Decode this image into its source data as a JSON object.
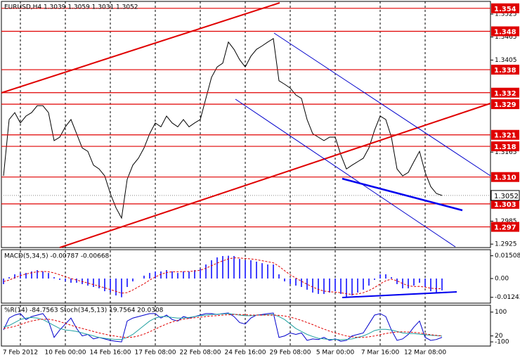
{
  "chart_data": [
    {
      "type": "line",
      "title": "EURUSD,H4  1.3039 1.3059 1.3031 1.3052",
      "categories": [
        null,
        null,
        null,
        "7 Feb 2012",
        null,
        null,
        null,
        null,
        null,
        null,
        null,
        "10 Feb 00:00",
        null,
        null,
        null,
        null,
        null,
        null,
        null,
        "14 Feb 16:00",
        null,
        null,
        null,
        null,
        null,
        null,
        null,
        "17 Feb 08:00",
        null,
        null,
        null,
        null,
        null,
        null,
        null,
        "22 Feb 08:00",
        null,
        null,
        null,
        null,
        null,
        null,
        null,
        "24 Feb 16:00",
        null,
        null,
        null,
        null,
        null,
        null,
        null,
        "29 Feb 08:00",
        null,
        null,
        null,
        null,
        null,
        null,
        null,
        "5 Mar 00:00",
        null,
        null,
        null,
        null,
        null,
        null,
        null,
        "7 Mar 16:00",
        null,
        null,
        null,
        null,
        null,
        null,
        null,
        "12 Mar 08:00",
        null,
        null,
        null
      ],
      "series": [
        {
          "color": "#000000",
          "values": [
            1.3103,
            1.325,
            1.3268,
            1.3241,
            1.3259,
            1.3268,
            1.3286,
            1.3286,
            1.3268,
            1.3195,
            1.3204,
            1.3231,
            1.325,
            1.3213,
            1.3176,
            1.3167,
            1.3131,
            1.3121,
            1.3103,
            1.3057,
            1.302,
            1.2993,
            1.3094,
            1.3131,
            1.3149,
            1.3176,
            1.3213,
            1.3241,
            1.3231,
            1.3259,
            1.3241,
            1.3231,
            1.325,
            1.3231,
            1.3241,
            1.325,
            1.3305,
            1.336,
            1.3387,
            1.3397,
            1.3452,
            1.3433,
            1.3406,
            1.3387,
            1.3415,
            1.3433,
            1.3442,
            1.3452,
            1.3461,
            1.3351,
            1.3342,
            1.3332,
            1.3314,
            1.3305,
            1.325,
            1.3213,
            1.3204,
            1.3195,
            1.3204,
            1.3204,
            1.3158,
            1.3121,
            1.3131,
            1.314,
            1.3149,
            1.3176,
            1.3222,
            1.3259,
            1.325,
            1.3204,
            1.3121,
            1.3103,
            1.3112,
            1.314,
            1.3167,
            1.3112,
            1.3075,
            1.3057,
            1.3052
          ]
        }
      ],
      "ylim": [
        1.2916,
        1.3558
      ],
      "yticks": [
        1.3525,
        1.3465,
        1.3405,
        1.3165,
        1.2985,
        1.2925
      ],
      "levels": [
        1.354,
        1.348,
        1.338,
        1.332,
        1.329,
        1.321,
        1.318,
        {
          "value": 1.31,
          "label": "1.310"
        },
        1.303,
        1.297
      ],
      "level_color": "#e00000",
      "last_price": 1.3052
    },
    {
      "type": "bar",
      "title": "MACD(5,34,5) -0.00787 -0.00668",
      "series": [
        {
          "color": "#0000ff",
          "values": [
            -0.0037,
            0.0009,
            0.0028,
            0.0037,
            0.0037,
            0.0047,
            0.0056,
            0.0047,
            0.0037,
            0.0009,
            -0.0009,
            -0.0019,
            -0.0028,
            -0.0028,
            -0.0037,
            -0.0047,
            -0.0056,
            -0.0065,
            -0.0084,
            -0.0093,
            -0.0112,
            -0.0124,
            -0.0056,
            -0.0019,
            0,
            0.0019,
            0.0037,
            0.0047,
            0.0047,
            0.0056,
            0.0047,
            0.0037,
            0.0047,
            0.0047,
            0.0056,
            0.0065,
            0.0093,
            0.0121,
            0.014,
            0.0149,
            0.0151,
            0.0149,
            0.013,
            0.0121,
            0.0121,
            0.0112,
            0.0102,
            0.0093,
            0.0093,
            0.0028,
            -0.0019,
            -0.0037,
            -0.0047,
            -0.0056,
            -0.0074,
            -0.0093,
            -0.0102,
            -0.0102,
            -0.0093,
            -0.0084,
            -0.0102,
            -0.0124,
            -0.0112,
            -0.0093,
            -0.0074,
            -0.0047,
            -0.0009,
            0.0028,
            0.0028,
            0.0009,
            -0.0037,
            -0.0065,
            -0.0065,
            -0.0047,
            -0.0028,
            -0.0056,
            -0.0084,
            -0.0093,
            -0.00787
          ]
        },
        {
          "color": "#e00000",
          "type": "line",
          "dashed": true,
          "values": [
            -0.002,
            -0.001,
            0.0005,
            0.002,
            0.003,
            0.0038,
            0.0045,
            0.0047,
            0.0045,
            0.0037,
            0.0025,
            0.0012,
            0,
            -0.001,
            -0.002,
            -0.003,
            -0.004,
            -0.005,
            -0.0062,
            -0.0073,
            -0.0085,
            -0.0097,
            -0.0093,
            -0.0076,
            -0.0055,
            -0.0035,
            -0.001,
            0.001,
            0.0028,
            0.004,
            0.0045,
            0.0045,
            0.0046,
            0.0047,
            0.005,
            0.0055,
            0.0068,
            0.0085,
            0.0102,
            0.0117,
            0.013,
            0.0137,
            0.0136,
            0.0133,
            0.013,
            0.0125,
            0.0118,
            0.0111,
            0.0104,
            0.0081,
            0.0052,
            0.0025,
            0.0003,
            -0.0018,
            -0.0038,
            -0.0056,
            -0.0072,
            -0.0083,
            -0.0088,
            -0.009,
            -0.0094,
            -0.0101,
            -0.0105,
            -0.0102,
            -0.0094,
            -0.008,
            -0.006,
            -0.0035,
            -0.0015,
            -0.0004,
            -0.0015,
            -0.0033,
            -0.0048,
            -0.0053,
            -0.0052,
            -0.0057,
            -0.0064,
            -0.0068,
            -0.00668
          ]
        }
      ],
      "ylim": [
        -0.0163,
        0.0191
      ],
      "yticks": [
        0.01508,
        {
          "value": 0,
          "label": "0.00"
        },
        -0.01243
      ]
    },
    {
      "type": "line",
      "title": "%R(14) -84.7563  Stoch(34,5,13) 19.7564 20.0308",
      "series": [
        {
          "color": "#0000cc",
          "values": [
            -60,
            -20,
            -10,
            -5,
            -25,
            -15,
            -10,
            -5,
            -30,
            -85,
            -60,
            -40,
            -20,
            -55,
            -80,
            -75,
            -90,
            -85,
            -90,
            -95,
            -98,
            -100,
            -30,
            -20,
            -15,
            -10,
            -5,
            -5,
            -20,
            -10,
            -25,
            -30,
            -15,
            -20,
            -15,
            -10,
            -5,
            -5,
            -8,
            -5,
            -3,
            -15,
            -35,
            -40,
            -20,
            -10,
            -8,
            -5,
            -3,
            -85,
            -80,
            -70,
            -75,
            -70,
            -95,
            -90,
            -92,
            -85,
            -95,
            -90,
            -98,
            -95,
            -80,
            -75,
            -70,
            -40,
            -10,
            -5,
            -15,
            -60,
            -95,
            -90,
            -75,
            -50,
            -30,
            -85,
            -95,
            -92,
            -84.7563
          ]
        },
        {
          "color": "#20a0a0",
          "axis": "y2",
          "values": [
            50,
            55,
            65,
            75,
            80,
            82,
            80,
            75,
            65,
            55,
            45,
            40,
            38,
            35,
            30,
            25,
            20,
            15,
            12,
            10,
            8,
            8,
            15,
            25,
            40,
            55,
            70,
            80,
            85,
            85,
            82,
            80,
            80,
            82,
            85,
            88,
            90,
            92,
            93,
            94,
            95,
            93,
            90,
            88,
            88,
            90,
            90,
            91,
            92,
            85,
            75,
            60,
            45,
            35,
            25,
            18,
            12,
            10,
            8,
            8,
            7,
            8,
            10,
            15,
            20,
            28,
            38,
            42,
            42,
            40,
            35,
            30,
            28,
            28,
            26,
            24,
            22,
            21,
            19.7564
          ]
        },
        {
          "color": "#e00000",
          "axis": "y2",
          "dashed": true,
          "values": [
            45,
            48,
            52,
            58,
            65,
            70,
            74,
            76,
            76,
            73,
            68,
            62,
            56,
            50,
            45,
            40,
            35,
            30,
            26,
            22,
            19,
            16,
            15,
            16,
            20,
            26,
            34,
            43,
            52,
            60,
            67,
            72,
            76,
            79,
            81,
            83,
            85,
            87,
            88,
            90,
            91,
            92,
            92,
            91,
            90,
            90,
            90,
            90,
            90,
            89,
            87,
            83,
            78,
            72,
            65,
            58,
            50,
            43,
            36,
            30,
            25,
            20,
            17,
            15,
            15,
            17,
            20,
            24,
            28,
            31,
            33,
            34,
            33,
            32,
            30,
            27,
            24,
            22,
            20.0308
          ]
        }
      ],
      "ylim": [
        -114,
        23
      ],
      "yticks": [
        -100
      ],
      "y2lim": [
        -14,
        123
      ],
      "y2ticks": [
        100,
        20
      ]
    }
  ]
}
